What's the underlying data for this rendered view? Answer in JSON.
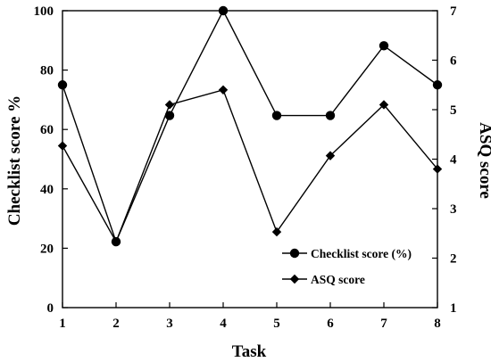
{
  "chart_data": {
    "type": "line",
    "xlabel": "Task",
    "ylabel_left": "Checklist score %",
    "ylabel_right": "ASQ score",
    "x": [
      1,
      2,
      3,
      4,
      5,
      6,
      7,
      8
    ],
    "x_ticks": [
      "1",
      "2",
      "3",
      "4",
      "5",
      "6",
      "7",
      "8"
    ],
    "xlim": [
      1,
      8
    ],
    "ylim_left": [
      0,
      100
    ],
    "y_ticks_left": [
      "0",
      "20",
      "40",
      "60",
      "80",
      "100"
    ],
    "ylim_right": [
      1,
      7
    ],
    "y_ticks_right": [
      "1",
      "2",
      "3",
      "4",
      "5",
      "6",
      "7"
    ],
    "legend_position": "lower-right",
    "grid": false,
    "series": [
      {
        "name": "Checklist score (%)",
        "axis": "left",
        "marker": "circle",
        "color": "#000000",
        "values": [
          75,
          22.2,
          64.7,
          100,
          64.7,
          64.7,
          88.2,
          75
        ]
      },
      {
        "name": "ASQ score",
        "axis": "right",
        "marker": "diamond",
        "color": "#000000",
        "values": [
          4.27,
          2.33,
          5.1,
          5.4,
          2.53,
          4.07,
          5.1,
          3.8
        ]
      }
    ]
  }
}
